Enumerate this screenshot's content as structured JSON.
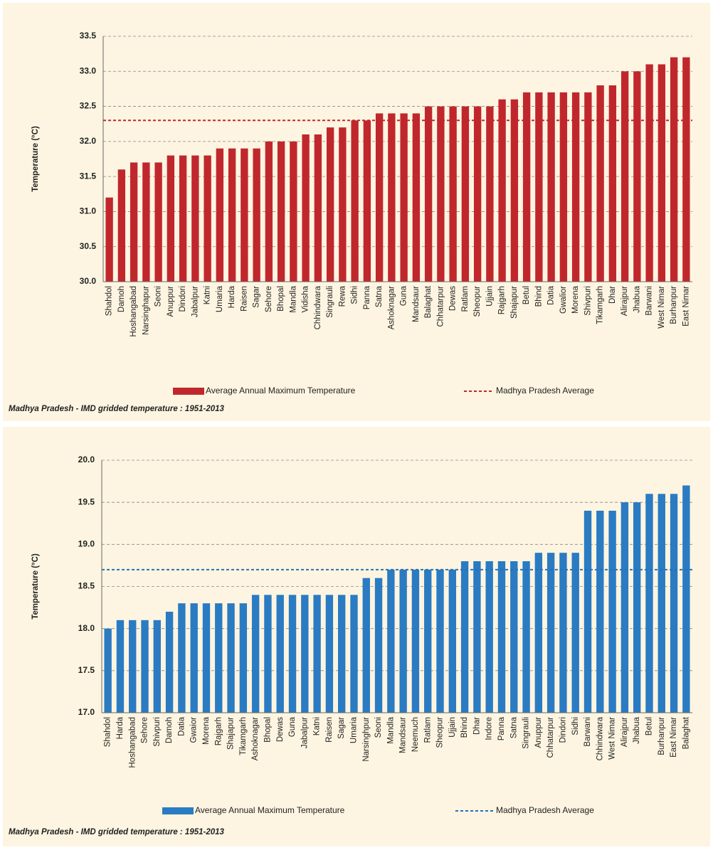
{
  "chart_data": [
    {
      "type": "bar",
      "y_label": "Temperature (°C)",
      "categories": [
        "Shahdol",
        "Damoh",
        "Hoshangabad",
        "Narsinghapur",
        "Seoni",
        "Anuppur",
        "Dindori",
        "Jabalpur",
        "Katni",
        "Umaria",
        "Harda",
        "Raisen",
        "Sagar",
        "Sehore",
        "Bhopal",
        "Mandla",
        "Vidisha",
        "Chhindwara",
        "Singrauli",
        "Rewa",
        "Sidhi",
        "Panna",
        "Satna",
        "Ashoknagar",
        "Guna",
        "Mandsaur",
        "Balaghat",
        "Chhatarpur",
        "Dewas",
        "Ratlam",
        "Sheopur",
        "Ujjain",
        "Rajgarh",
        "Shajapur",
        "Betul",
        "Bhind",
        "Datia",
        "Gwalior",
        "Morena",
        "Shivpuri",
        "Tikamgarh",
        "Dhar",
        "Alirajpur",
        "Jhabua",
        "Barwani",
        "West Nimar",
        "Burhanpur",
        "East Nimar"
      ],
      "series": [
        {
          "name": "Average Annual Maximum Temperature",
          "color": "#c0272d",
          "values": [
            31.2,
            31.6,
            31.7,
            31.7,
            31.7,
            31.8,
            31.8,
            31.8,
            31.8,
            31.9,
            31.9,
            31.9,
            31.9,
            32.0,
            32.0,
            32.0,
            32.1,
            32.1,
            32.2,
            32.2,
            32.3,
            32.3,
            32.4,
            32.4,
            32.4,
            32.4,
            32.5,
            32.5,
            32.5,
            32.5,
            32.5,
            32.5,
            32.6,
            32.6,
            32.7,
            32.7,
            32.7,
            32.7,
            32.7,
            32.7,
            32.8,
            32.8,
            33.0,
            33.0,
            33.1,
            33.1,
            33.2,
            33.2
          ]
        }
      ],
      "reference": {
        "name": "Madhya Pradesh Average",
        "value": 32.3,
        "color": "#c0272d"
      },
      "ylim": [
        30.0,
        33.5
      ],
      "yticks": [
        {
          "value": 30,
          "label": "30.0"
        },
        30.5,
        {
          "value": 31,
          "label": "31.0"
        },
        31.5,
        {
          "value": 32,
          "label": "32.0"
        },
        32.5,
        {
          "value": 33,
          "label": "33.0"
        },
        33.5
      ],
      "grid": true,
      "source": "Madhya Pradesh - IMD gridded temperature : 1951-2013"
    },
    {
      "type": "bar",
      "y_label": "Temperature (°C)",
      "categories": [
        "Shahdol",
        "Harda",
        "Hoshangabad",
        "Sehore",
        "Shivpuri",
        "Damoh",
        "Datia",
        "Gwaior",
        "Morena",
        "Rajgarh",
        "Shajapur",
        "Tikamgarh",
        "Ashoknagar",
        "Bhopal",
        "Dewas",
        "Guna",
        "Jabalpur",
        "Katni",
        "Raisen",
        "Sagar",
        "Umaria",
        "Narsinghpur",
        "Seoni",
        "Mandla",
        "Mandsaur",
        "Neemuch",
        "Ratlam",
        "Sheopur",
        "Ujjain",
        "Bhind",
        "Dhar",
        "Indore",
        "Panna",
        "Satna",
        "Singrauli",
        "Anuppur",
        "Chhatarpur",
        "Dindori",
        "Sidhi",
        "Barwani",
        "Chhindwara",
        "West Nimar",
        "Alirajpur",
        "Jhabua",
        "Betul",
        "Burhanpur",
        "East Nimar",
        "Balaghat"
      ],
      "series": [
        {
          "name": "Average Annual Maximum Temperature",
          "color": "#2a7bc2",
          "values": [
            18.0,
            18.1,
            18.1,
            18.1,
            18.1,
            18.2,
            18.3,
            18.3,
            18.3,
            18.3,
            18.3,
            18.3,
            18.4,
            18.4,
            18.4,
            18.4,
            18.4,
            18.4,
            18.4,
            18.4,
            18.4,
            18.6,
            18.6,
            18.7,
            18.7,
            18.7,
            18.7,
            18.7,
            18.7,
            18.8,
            18.8,
            18.8,
            18.8,
            18.8,
            18.8,
            18.9,
            18.9,
            18.9,
            18.9,
            19.4,
            19.4,
            19.4,
            19.5,
            19.5,
            19.6,
            19.6,
            19.6,
            19.7
          ]
        }
      ],
      "reference": {
        "name": "Madhya Pradesh Average",
        "value": 18.7,
        "color": "#2a6fb8"
      },
      "ylim": [
        17.0,
        20.0
      ],
      "yticks": [
        {
          "value": 17,
          "label": "17.0"
        },
        17.5,
        {
          "value": 18,
          "label": "18.0"
        },
        18.5,
        {
          "value": 19,
          "label": "19.0"
        },
        19.5,
        {
          "value": 20,
          "label": "20.0"
        }
      ],
      "grid": true,
      "source": "Madhya Pradesh - IMD gridded temperature : 1951-2013"
    }
  ]
}
